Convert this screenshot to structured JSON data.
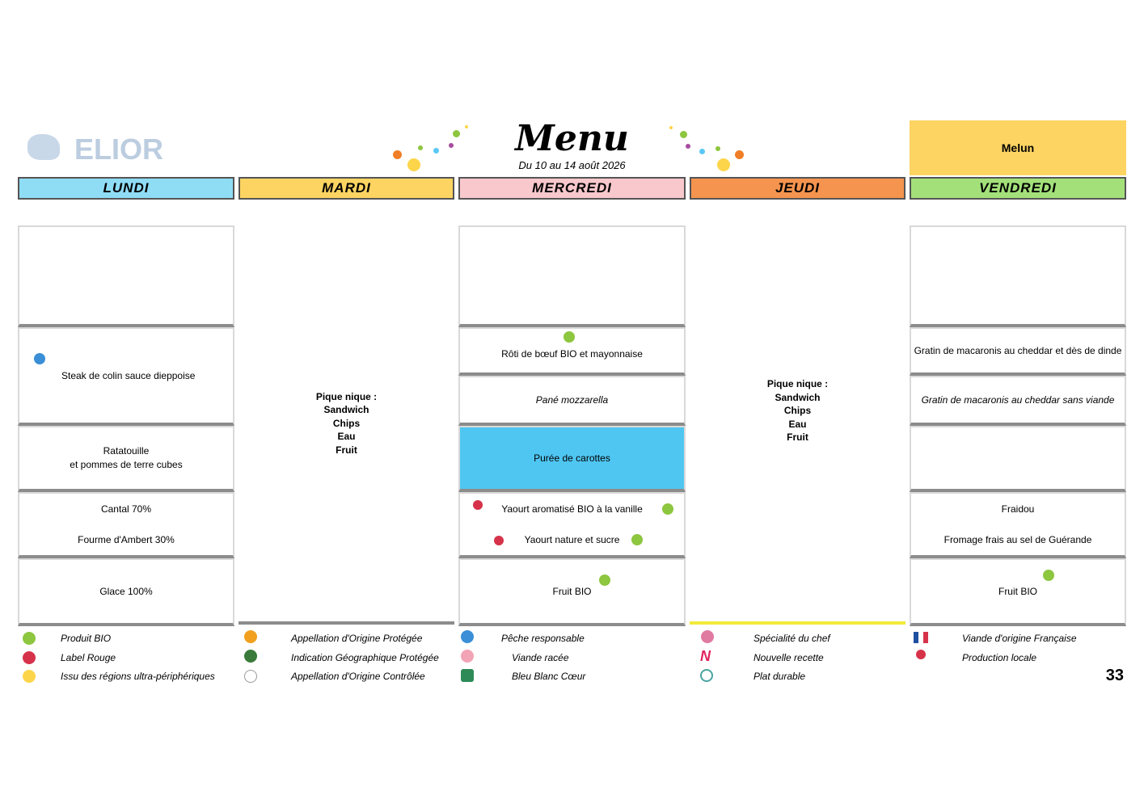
{
  "header": {
    "logo": "ELIOR",
    "title": "Menu",
    "subtitle": "Du 10 au 14 août 2026",
    "location": "Melun"
  },
  "days": [
    "LUNDI",
    "MARDI",
    "MERCREDI",
    "JEUDI",
    "VENDREDI"
  ],
  "lundi": {
    "plat": "Steak de colin sauce dieppoise",
    "garniture": [
      "Ratatouille",
      "et pommes de terre cubes"
    ],
    "fromages": [
      "Cantal 70%",
      "Fourme d'Ambert 30%"
    ],
    "dessert": "Glace 100%"
  },
  "mardi": {
    "lines": [
      "Pique nique :",
      "Sandwich",
      "Chips",
      "Eau",
      "Fruit"
    ]
  },
  "mercredi": {
    "plat": "Rôti de bœuf BIO et mayonnaise",
    "alternative": "Pané mozzarella",
    "garniture": "Purée de carottes",
    "laitages": [
      "Yaourt aromatisé BIO à la vanille",
      "Yaourt nature et sucre"
    ],
    "dessert": "Fruit BIO"
  },
  "jeudi": {
    "lines": [
      "Pique nique :",
      "Sandwich",
      "Chips",
      "Eau",
      "Fruit"
    ]
  },
  "vendredi": {
    "plat": "Gratin de macaronis au cheddar et dès de dinde",
    "alternative": "Gratin de macaronis au cheddar sans viande",
    "fromages": [
      "Fraidou",
      "Fromage frais au sel de Guérande"
    ],
    "dessert": "Fruit BIO"
  },
  "legend": [
    [
      "Produit BIO",
      "Label Rouge",
      "Issu des régions ultra-périphériques"
    ],
    [
      "Appellation d'Origine Protégée",
      "Indication Géographique Protégée",
      "Appellation d'Origine Contrôlée"
    ],
    [
      "Pêche responsable",
      "Viande racée",
      "Bleu Blanc Cœur"
    ],
    [
      "Spécialité du chef",
      "Nouvelle recette",
      "Plat durable"
    ],
    [
      "Viande d'origine Française",
      "Production locale"
    ]
  ],
  "page_number": "33"
}
